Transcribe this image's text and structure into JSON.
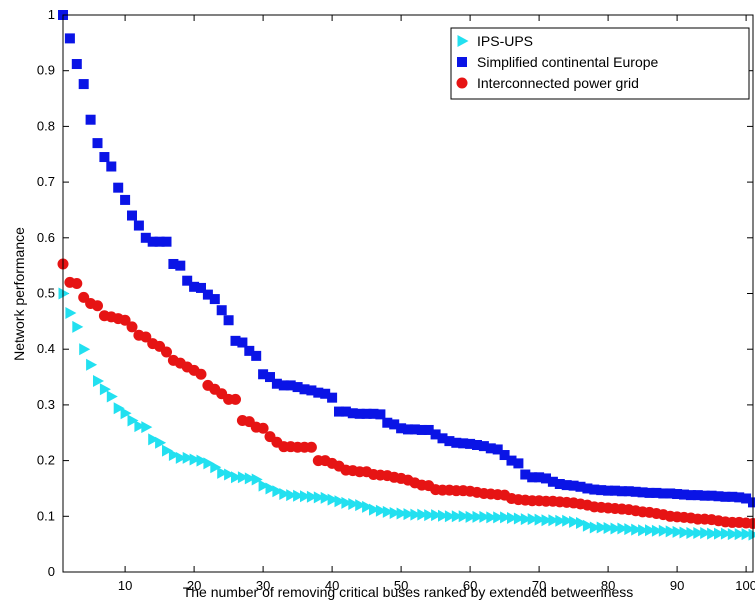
{
  "chart_data": {
    "type": "scatter",
    "xlabel": "The number of removing critical buses ranked by extended betweenness",
    "ylabel": "Network performance",
    "xlim": [
      1,
      101
    ],
    "ylim": [
      0,
      1
    ],
    "xticks": [
      10,
      20,
      30,
      40,
      50,
      60,
      70,
      80,
      90,
      100
    ],
    "yticks": [
      0,
      0.1,
      0.2,
      0.3,
      0.4,
      0.5,
      0.6,
      0.7,
      0.8,
      0.9,
      1
    ],
    "grid": false,
    "legend_position": "top-right",
    "series": [
      {
        "name": "IPS-UPS",
        "marker": "triangle-right",
        "color": "#22e0f0",
        "x": [
          1,
          2,
          3,
          4,
          5,
          6,
          7,
          8,
          9,
          10,
          11,
          12,
          13,
          14,
          15,
          16,
          17,
          18,
          19,
          20,
          21,
          22,
          23,
          24,
          25,
          26,
          27,
          28,
          29,
          30,
          31,
          32,
          33,
          34,
          35,
          36,
          37,
          38,
          39,
          40,
          41,
          42,
          43,
          44,
          45,
          46,
          47,
          48,
          49,
          50,
          51,
          52,
          53,
          54,
          55,
          56,
          57,
          58,
          59,
          60,
          61,
          62,
          63,
          64,
          65,
          66,
          67,
          68,
          69,
          70,
          71,
          72,
          73,
          74,
          75,
          76,
          77,
          78,
          79,
          80,
          81,
          82,
          83,
          84,
          85,
          86,
          87,
          88,
          89,
          90,
          91,
          92,
          93,
          94,
          95,
          96,
          97,
          98,
          99,
          100,
          101
        ],
        "y": [
          0.5,
          0.465,
          0.44,
          0.4,
          0.372,
          0.343,
          0.328,
          0.315,
          0.294,
          0.285,
          0.272,
          0.262,
          0.26,
          0.238,
          0.232,
          0.218,
          0.21,
          0.205,
          0.205,
          0.202,
          0.2,
          0.195,
          0.188,
          0.178,
          0.175,
          0.17,
          0.17,
          0.168,
          0.166,
          0.155,
          0.15,
          0.145,
          0.14,
          0.138,
          0.137,
          0.136,
          0.135,
          0.134,
          0.133,
          0.13,
          0.127,
          0.124,
          0.122,
          0.12,
          0.117,
          0.112,
          0.11,
          0.108,
          0.106,
          0.105,
          0.104,
          0.103,
          0.103,
          0.102,
          0.102,
          0.101,
          0.1,
          0.1,
          0.1,
          0.099,
          0.099,
          0.099,
          0.098,
          0.098,
          0.098,
          0.097,
          0.096,
          0.095,
          0.095,
          0.094,
          0.093,
          0.093,
          0.092,
          0.092,
          0.09,
          0.088,
          0.083,
          0.08,
          0.08,
          0.079,
          0.078,
          0.078,
          0.077,
          0.076,
          0.075,
          0.075,
          0.074,
          0.074,
          0.073,
          0.072,
          0.071,
          0.07,
          0.07,
          0.07,
          0.069,
          0.069,
          0.069,
          0.068,
          0.068,
          0.068,
          0.067
        ]
      },
      {
        "name": "Simplified continental Europe",
        "marker": "square",
        "color": "#0a14e6",
        "x": [
          1,
          2,
          3,
          4,
          5,
          6,
          7,
          8,
          9,
          10,
          11,
          12,
          13,
          14,
          15,
          16,
          17,
          18,
          19,
          20,
          21,
          22,
          23,
          24,
          25,
          26,
          27,
          28,
          29,
          30,
          31,
          32,
          33,
          34,
          35,
          36,
          37,
          38,
          39,
          40,
          41,
          42,
          43,
          44,
          45,
          46,
          47,
          48,
          49,
          50,
          51,
          52,
          53,
          54,
          55,
          56,
          57,
          58,
          59,
          60,
          61,
          62,
          63,
          64,
          65,
          66,
          67,
          68,
          69,
          70,
          71,
          72,
          73,
          74,
          75,
          76,
          77,
          78,
          79,
          80,
          81,
          82,
          83,
          84,
          85,
          86,
          87,
          88,
          89,
          90,
          91,
          92,
          93,
          94,
          95,
          96,
          97,
          98,
          99,
          100,
          101
        ],
        "y": [
          1,
          0.958,
          0.912,
          0.876,
          0.812,
          0.77,
          0.745,
          0.728,
          0.69,
          0.668,
          0.64,
          0.622,
          0.6,
          0.593,
          0.593,
          0.593,
          0.553,
          0.55,
          0.523,
          0.512,
          0.51,
          0.498,
          0.49,
          0.47,
          0.452,
          0.415,
          0.412,
          0.397,
          0.388,
          0.355,
          0.35,
          0.338,
          0.335,
          0.335,
          0.332,
          0.328,
          0.326,
          0.322,
          0.32,
          0.313,
          0.288,
          0.288,
          0.285,
          0.284,
          0.284,
          0.284,
          0.283,
          0.268,
          0.265,
          0.258,
          0.256,
          0.256,
          0.255,
          0.255,
          0.247,
          0.24,
          0.235,
          0.232,
          0.231,
          0.23,
          0.228,
          0.226,
          0.222,
          0.22,
          0.21,
          0.2,
          0.195,
          0.175,
          0.17,
          0.17,
          0.168,
          0.162,
          0.158,
          0.156,
          0.155,
          0.153,
          0.15,
          0.148,
          0.147,
          0.146,
          0.146,
          0.145,
          0.145,
          0.144,
          0.143,
          0.142,
          0.142,
          0.141,
          0.141,
          0.14,
          0.139,
          0.138,
          0.138,
          0.137,
          0.137,
          0.136,
          0.135,
          0.135,
          0.134,
          0.132,
          0.125
        ]
      },
      {
        "name": "Interconnected power grid",
        "marker": "circle",
        "color": "#e61414",
        "x": [
          1,
          2,
          3,
          4,
          5,
          6,
          7,
          8,
          9,
          10,
          11,
          12,
          13,
          14,
          15,
          16,
          17,
          18,
          19,
          20,
          21,
          22,
          23,
          24,
          25,
          26,
          27,
          28,
          29,
          30,
          31,
          32,
          33,
          34,
          35,
          36,
          37,
          38,
          39,
          40,
          41,
          42,
          43,
          44,
          45,
          46,
          47,
          48,
          49,
          50,
          51,
          52,
          53,
          54,
          55,
          56,
          57,
          58,
          59,
          60,
          61,
          62,
          63,
          64,
          65,
          66,
          67,
          68,
          69,
          70,
          71,
          72,
          73,
          74,
          75,
          76,
          77,
          78,
          79,
          80,
          81,
          82,
          83,
          84,
          85,
          86,
          87,
          88,
          89,
          90,
          91,
          92,
          93,
          94,
          95,
          96,
          97,
          98,
          99,
          100,
          101
        ],
        "y": [
          0.553,
          0.52,
          0.518,
          0.493,
          0.482,
          0.478,
          0.46,
          0.458,
          0.455,
          0.452,
          0.44,
          0.425,
          0.422,
          0.41,
          0.405,
          0.395,
          0.38,
          0.375,
          0.368,
          0.362,
          0.355,
          0.335,
          0.328,
          0.32,
          0.31,
          0.31,
          0.272,
          0.27,
          0.26,
          0.258,
          0.243,
          0.233,
          0.225,
          0.225,
          0.224,
          0.224,
          0.224,
          0.2,
          0.2,
          0.195,
          0.19,
          0.183,
          0.182,
          0.18,
          0.18,
          0.175,
          0.174,
          0.173,
          0.17,
          0.168,
          0.165,
          0.16,
          0.156,
          0.155,
          0.148,
          0.147,
          0.147,
          0.146,
          0.146,
          0.145,
          0.143,
          0.141,
          0.14,
          0.139,
          0.138,
          0.132,
          0.13,
          0.129,
          0.128,
          0.128,
          0.127,
          0.127,
          0.126,
          0.125,
          0.124,
          0.122,
          0.12,
          0.117,
          0.116,
          0.115,
          0.114,
          0.113,
          0.112,
          0.11,
          0.108,
          0.107,
          0.105,
          0.103,
          0.1,
          0.099,
          0.098,
          0.097,
          0.095,
          0.095,
          0.094,
          0.092,
          0.09,
          0.089,
          0.089,
          0.088,
          0.087
        ]
      }
    ]
  }
}
